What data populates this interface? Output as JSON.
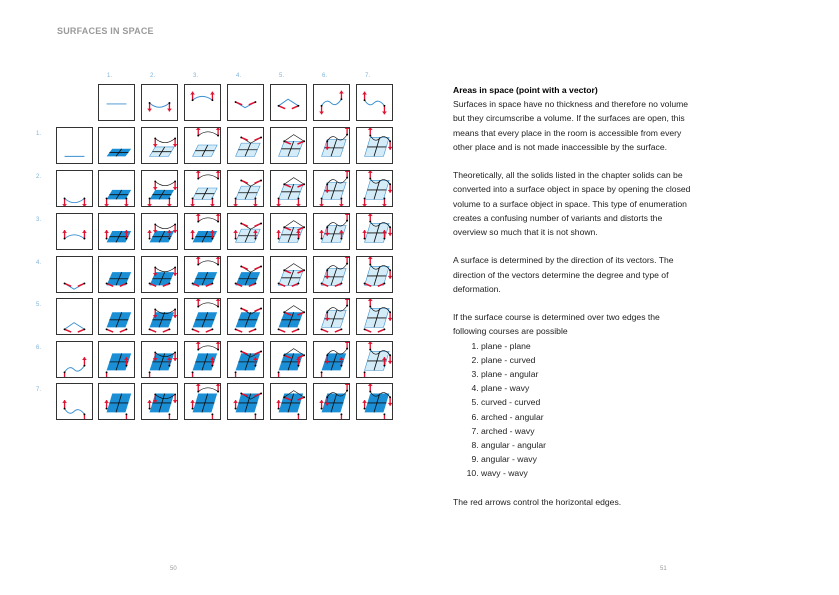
{
  "header": {
    "title": "SURFACES IN SPACE"
  },
  "columns": [
    "1.",
    "2.",
    "3.",
    "4.",
    "5.",
    "6.",
    "7."
  ],
  "rows": [
    "1.",
    "2.",
    "3.",
    "4.",
    "5.",
    "6.",
    "7."
  ],
  "colors": {
    "surface_dark": "#1a8fd6",
    "surface_light": "#d3ecf8",
    "arrow": "#e0102f",
    "curve": "#3a8fd0"
  },
  "text": {
    "heading": "Areas in space (point with a vector)",
    "p1": "Surfaces in space have no thickness and therefore no volume but they circumscribe a volume. If the surfaces are open, this means that every place in the room is accessible from every other place and is not made inaccessible by the surface.",
    "p2": "Theoretically, all the solids listed in the chapter solids can be converted into a surface object in space by opening the closed volume to a surface object in space. This type of enumeration creates a confusing number of variants and distorts the overview so much that it is not shown.",
    "p3": "A surface is determined by the direction of its vectors. The direction of the vectors determine the degree and type of deformation.",
    "p4": "If the surface course is determined over two edges the following courses are possible",
    "list": [
      "plane - plane",
      "plane - curved",
      "plane - angular",
      "plane - wavy",
      "curved - curved",
      "arched - angular",
      "arched - wavy",
      "angular - angular",
      "angular - wavy",
      "wavy - wavy"
    ],
    "p5": "The red arrows control the horizontal edges."
  },
  "page_numbers": {
    "left": "50",
    "right": "51"
  }
}
